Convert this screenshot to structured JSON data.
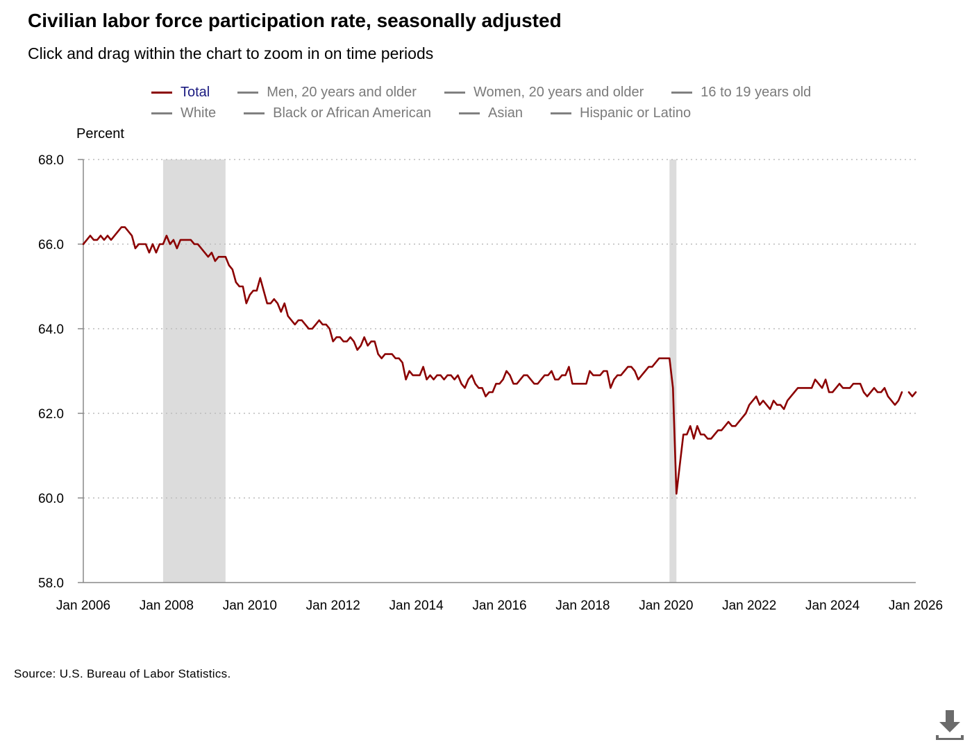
{
  "title": "Civilian labor force participation rate, seasonally adjusted",
  "subtitle": "Click and drag within the chart to zoom in on time periods",
  "source": "Source: U.S. Bureau of Labor Statistics.",
  "legend": {
    "items": [
      {
        "label": "Total",
        "active": true
      },
      {
        "label": "Men, 20 years and older",
        "active": false
      },
      {
        "label": "Women, 20 years and older",
        "active": false
      },
      {
        "label": "16 to 19 years old",
        "active": false
      },
      {
        "label": "White",
        "active": false
      },
      {
        "label": "Black or African American",
        "active": false
      },
      {
        "label": "Asian",
        "active": false
      },
      {
        "label": "Hispanic or Latino",
        "active": false
      }
    ]
  },
  "colors": {
    "series": "#8b0000",
    "recession": "#dcdcdc",
    "grid": "#bbbbbb",
    "legend_active_text": "#1a1a80"
  },
  "icons": {
    "download": "download-icon"
  },
  "chart_data": {
    "type": "line",
    "ylabel": "Percent",
    "xlabel": "",
    "ylim": [
      58.0,
      68.0
    ],
    "yticks": [
      "58.0",
      "60.0",
      "62.0",
      "64.0",
      "66.0",
      "68.0"
    ],
    "xlim": [
      "2006-01",
      "2026-01"
    ],
    "xticks": [
      "Jan 2006",
      "Jan 2008",
      "Jan 2010",
      "Jan 2012",
      "Jan 2014",
      "Jan 2016",
      "Jan 2018",
      "Jan 2020",
      "Jan 2022",
      "Jan 2024",
      "Jan 2026"
    ],
    "grid": "horizontal dotted",
    "legend_position": "top",
    "recessions": [
      {
        "start": "2007-12",
        "end": "2009-06"
      },
      {
        "start": "2020-02",
        "end": "2020-04"
      }
    ],
    "series": [
      {
        "name": "Total",
        "points": [
          [
            "2006-01",
            66.0
          ],
          [
            "2006-02",
            66.1
          ],
          [
            "2006-03",
            66.2
          ],
          [
            "2006-04",
            66.1
          ],
          [
            "2006-05",
            66.1
          ],
          [
            "2006-06",
            66.2
          ],
          [
            "2006-07",
            66.1
          ],
          [
            "2006-08",
            66.2
          ],
          [
            "2006-09",
            66.1
          ],
          [
            "2006-10",
            66.2
          ],
          [
            "2006-11",
            66.3
          ],
          [
            "2006-12",
            66.4
          ],
          [
            "2007-01",
            66.4
          ],
          [
            "2007-02",
            66.3
          ],
          [
            "2007-03",
            66.2
          ],
          [
            "2007-04",
            65.9
          ],
          [
            "2007-05",
            66.0
          ],
          [
            "2007-06",
            66.0
          ],
          [
            "2007-07",
            66.0
          ],
          [
            "2007-08",
            65.8
          ],
          [
            "2007-09",
            66.0
          ],
          [
            "2007-10",
            65.8
          ],
          [
            "2007-11",
            66.0
          ],
          [
            "2007-12",
            66.0
          ],
          [
            "2008-01",
            66.2
          ],
          [
            "2008-02",
            66.0
          ],
          [
            "2008-03",
            66.1
          ],
          [
            "2008-04",
            65.9
          ],
          [
            "2008-05",
            66.1
          ],
          [
            "2008-06",
            66.1
          ],
          [
            "2008-07",
            66.1
          ],
          [
            "2008-08",
            66.1
          ],
          [
            "2008-09",
            66.0
          ],
          [
            "2008-10",
            66.0
          ],
          [
            "2008-11",
            65.9
          ],
          [
            "2008-12",
            65.8
          ],
          [
            "2009-01",
            65.7
          ],
          [
            "2009-02",
            65.8
          ],
          [
            "2009-03",
            65.6
          ],
          [
            "2009-04",
            65.7
          ],
          [
            "2009-05",
            65.7
          ],
          [
            "2009-06",
            65.7
          ],
          [
            "2009-07",
            65.5
          ],
          [
            "2009-08",
            65.4
          ],
          [
            "2009-09",
            65.1
          ],
          [
            "2009-10",
            65.0
          ],
          [
            "2009-11",
            65.0
          ],
          [
            "2009-12",
            64.6
          ],
          [
            "2010-01",
            64.8
          ],
          [
            "2010-02",
            64.9
          ],
          [
            "2010-03",
            64.9
          ],
          [
            "2010-04",
            65.2
          ],
          [
            "2010-05",
            64.9
          ],
          [
            "2010-06",
            64.6
          ],
          [
            "2010-07",
            64.6
          ],
          [
            "2010-08",
            64.7
          ],
          [
            "2010-09",
            64.6
          ],
          [
            "2010-10",
            64.4
          ],
          [
            "2010-11",
            64.6
          ],
          [
            "2010-12",
            64.3
          ],
          [
            "2011-01",
            64.2
          ],
          [
            "2011-02",
            64.1
          ],
          [
            "2011-03",
            64.2
          ],
          [
            "2011-04",
            64.2
          ],
          [
            "2011-05",
            64.1
          ],
          [
            "2011-06",
            64.0
          ],
          [
            "2011-07",
            64.0
          ],
          [
            "2011-08",
            64.1
          ],
          [
            "2011-09",
            64.2
          ],
          [
            "2011-10",
            64.1
          ],
          [
            "2011-11",
            64.1
          ],
          [
            "2011-12",
            64.0
          ],
          [
            "2012-01",
            63.7
          ],
          [
            "2012-02",
            63.8
          ],
          [
            "2012-03",
            63.8
          ],
          [
            "2012-04",
            63.7
          ],
          [
            "2012-05",
            63.7
          ],
          [
            "2012-06",
            63.8
          ],
          [
            "2012-07",
            63.7
          ],
          [
            "2012-08",
            63.5
          ],
          [
            "2012-09",
            63.6
          ],
          [
            "2012-10",
            63.8
          ],
          [
            "2012-11",
            63.6
          ],
          [
            "2012-12",
            63.7
          ],
          [
            "2013-01",
            63.7
          ],
          [
            "2013-02",
            63.4
          ],
          [
            "2013-03",
            63.3
          ],
          [
            "2013-04",
            63.4
          ],
          [
            "2013-05",
            63.4
          ],
          [
            "2013-06",
            63.4
          ],
          [
            "2013-07",
            63.3
          ],
          [
            "2013-08",
            63.3
          ],
          [
            "2013-09",
            63.2
          ],
          [
            "2013-10",
            62.8
          ],
          [
            "2013-11",
            63.0
          ],
          [
            "2013-12",
            62.9
          ],
          [
            "2014-01",
            62.9
          ],
          [
            "2014-02",
            62.9
          ],
          [
            "2014-03",
            63.1
          ],
          [
            "2014-04",
            62.8
          ],
          [
            "2014-05",
            62.9
          ],
          [
            "2014-06",
            62.8
          ],
          [
            "2014-07",
            62.9
          ],
          [
            "2014-08",
            62.9
          ],
          [
            "2014-09",
            62.8
          ],
          [
            "2014-10",
            62.9
          ],
          [
            "2014-11",
            62.9
          ],
          [
            "2014-12",
            62.8
          ],
          [
            "2015-01",
            62.9
          ],
          [
            "2015-02",
            62.7
          ],
          [
            "2015-03",
            62.6
          ],
          [
            "2015-04",
            62.8
          ],
          [
            "2015-05",
            62.9
          ],
          [
            "2015-06",
            62.7
          ],
          [
            "2015-07",
            62.6
          ],
          [
            "2015-08",
            62.6
          ],
          [
            "2015-09",
            62.4
          ],
          [
            "2015-10",
            62.5
          ],
          [
            "2015-11",
            62.5
          ],
          [
            "2015-12",
            62.7
          ],
          [
            "2016-01",
            62.7
          ],
          [
            "2016-02",
            62.8
          ],
          [
            "2016-03",
            63.0
          ],
          [
            "2016-04",
            62.9
          ],
          [
            "2016-05",
            62.7
          ],
          [
            "2016-06",
            62.7
          ],
          [
            "2016-07",
            62.8
          ],
          [
            "2016-08",
            62.9
          ],
          [
            "2016-09",
            62.9
          ],
          [
            "2016-10",
            62.8
          ],
          [
            "2016-11",
            62.7
          ],
          [
            "2016-12",
            62.7
          ],
          [
            "2017-01",
            62.8
          ],
          [
            "2017-02",
            62.9
          ],
          [
            "2017-03",
            62.9
          ],
          [
            "2017-04",
            63.0
          ],
          [
            "2017-05",
            62.8
          ],
          [
            "2017-06",
            62.8
          ],
          [
            "2017-07",
            62.9
          ],
          [
            "2017-08",
            62.9
          ],
          [
            "2017-09",
            63.1
          ],
          [
            "2017-10",
            62.7
          ],
          [
            "2017-11",
            62.7
          ],
          [
            "2017-12",
            62.7
          ],
          [
            "2018-01",
            62.7
          ],
          [
            "2018-02",
            62.7
          ],
          [
            "2018-03",
            63.0
          ],
          [
            "2018-04",
            62.9
          ],
          [
            "2018-05",
            62.9
          ],
          [
            "2018-06",
            62.9
          ],
          [
            "2018-07",
            63.0
          ],
          [
            "2018-08",
            63.0
          ],
          [
            "2018-09",
            62.6
          ],
          [
            "2018-10",
            62.8
          ],
          [
            "2018-11",
            62.9
          ],
          [
            "2018-12",
            62.9
          ],
          [
            "2019-01",
            63.0
          ],
          [
            "2019-02",
            63.1
          ],
          [
            "2019-03",
            63.1
          ],
          [
            "2019-04",
            63.0
          ],
          [
            "2019-05",
            62.8
          ],
          [
            "2019-06",
            62.9
          ],
          [
            "2019-07",
            63.0
          ],
          [
            "2019-08",
            63.1
          ],
          [
            "2019-09",
            63.1
          ],
          [
            "2019-10",
            63.2
          ],
          [
            "2019-11",
            63.3
          ],
          [
            "2019-12",
            63.3
          ],
          [
            "2020-01",
            63.3
          ],
          [
            "2020-02",
            63.3
          ],
          [
            "2020-03",
            62.6
          ],
          [
            "2020-04",
            60.1
          ],
          [
            "2020-05",
            60.8
          ],
          [
            "2020-06",
            61.5
          ],
          [
            "2020-07",
            61.5
          ],
          [
            "2020-08",
            61.7
          ],
          [
            "2020-09",
            61.4
          ],
          [
            "2020-10",
            61.7
          ],
          [
            "2020-11",
            61.5
          ],
          [
            "2020-12",
            61.5
          ],
          [
            "2021-01",
            61.4
          ],
          [
            "2021-02",
            61.4
          ],
          [
            "2021-03",
            61.5
          ],
          [
            "2021-04",
            61.6
          ],
          [
            "2021-05",
            61.6
          ],
          [
            "2021-06",
            61.7
          ],
          [
            "2021-07",
            61.8
          ],
          [
            "2021-08",
            61.7
          ],
          [
            "2021-09",
            61.7
          ],
          [
            "2021-10",
            61.8
          ],
          [
            "2021-11",
            61.9
          ],
          [
            "2021-12",
            62.0
          ],
          [
            "2022-01",
            62.2
          ],
          [
            "2022-02",
            62.3
          ],
          [
            "2022-03",
            62.4
          ],
          [
            "2022-04",
            62.2
          ],
          [
            "2022-05",
            62.3
          ],
          [
            "2022-06",
            62.2
          ],
          [
            "2022-07",
            62.1
          ],
          [
            "2022-08",
            62.3
          ],
          [
            "2022-09",
            62.2
          ],
          [
            "2022-10",
            62.2
          ],
          [
            "2022-11",
            62.1
          ],
          [
            "2022-12",
            62.3
          ],
          [
            "2023-01",
            62.4
          ],
          [
            "2023-02",
            62.5
          ],
          [
            "2023-03",
            62.6
          ],
          [
            "2023-04",
            62.6
          ],
          [
            "2023-05",
            62.6
          ],
          [
            "2023-06",
            62.6
          ],
          [
            "2023-07",
            62.6
          ],
          [
            "2023-08",
            62.8
          ],
          [
            "2023-09",
            62.7
          ],
          [
            "2023-10",
            62.6
          ],
          [
            "2023-11",
            62.8
          ],
          [
            "2023-12",
            62.5
          ],
          [
            "2024-01",
            62.5
          ],
          [
            "2024-02",
            62.6
          ],
          [
            "2024-03",
            62.7
          ],
          [
            "2024-04",
            62.6
          ],
          [
            "2024-05",
            62.6
          ],
          [
            "2024-06",
            62.6
          ],
          [
            "2024-07",
            62.7
          ],
          [
            "2024-08",
            62.7
          ],
          [
            "2024-09",
            62.7
          ],
          [
            "2024-10",
            62.5
          ],
          [
            "2024-11",
            62.4
          ],
          [
            "2024-12",
            62.5
          ],
          [
            "2025-01",
            62.6
          ],
          [
            "2025-02",
            62.5
          ],
          [
            "2025-03",
            62.5
          ],
          [
            "2025-04",
            62.6
          ],
          [
            "2025-05",
            62.4
          ],
          [
            "2025-06",
            62.3
          ],
          [
            "2025-07",
            62.2
          ],
          [
            "2025-08",
            62.3
          ],
          [
            "2025-09",
            62.5
          ],
          [
            "2025-10",
            null
          ],
          [
            "2025-11",
            62.5
          ],
          [
            "2025-12",
            62.4
          ],
          [
            "2026-01",
            62.5
          ]
        ]
      }
    ]
  }
}
